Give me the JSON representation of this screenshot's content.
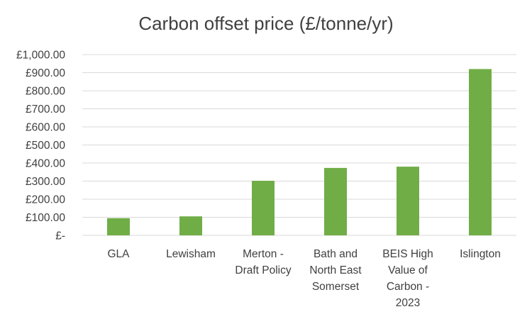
{
  "chart_data": {
    "type": "bar",
    "title": "Carbon offset price (£/tonne/yr)",
    "xlabel": "",
    "ylabel": "",
    "categories": [
      "GLA",
      "Lewisham",
      "Merton - Draft Policy",
      "Bath and North East Somerset",
      "BEIS High Value of Carbon - 2023",
      "Islington"
    ],
    "category_lines": [
      [
        "GLA"
      ],
      [
        "Lewisham"
      ],
      [
        "Merton -",
        "Draft Policy"
      ],
      [
        "Bath and",
        "North East",
        "Somerset"
      ],
      [
        "BEIS High",
        "Value of",
        "Carbon -",
        "2023"
      ],
      [
        "Islington"
      ]
    ],
    "values": [
      95,
      105,
      302,
      373,
      380,
      920
    ],
    "ylim": [
      0,
      1000
    ],
    "yticks": [
      0,
      100,
      200,
      300,
      400,
      500,
      600,
      700,
      800,
      900,
      1000
    ],
    "ytick_labels": [
      "£-",
      "£100.00",
      "£200.00",
      "£300.00",
      "£400.00",
      "£500.00",
      "£600.00",
      "£700.00",
      "£800.00",
      "£900.00",
      "£1,000.00"
    ],
    "grid": true,
    "legend": "none",
    "bar_color": "#70AD47",
    "grid_color": "#D9D9D9",
    "text_color": "#404040"
  }
}
